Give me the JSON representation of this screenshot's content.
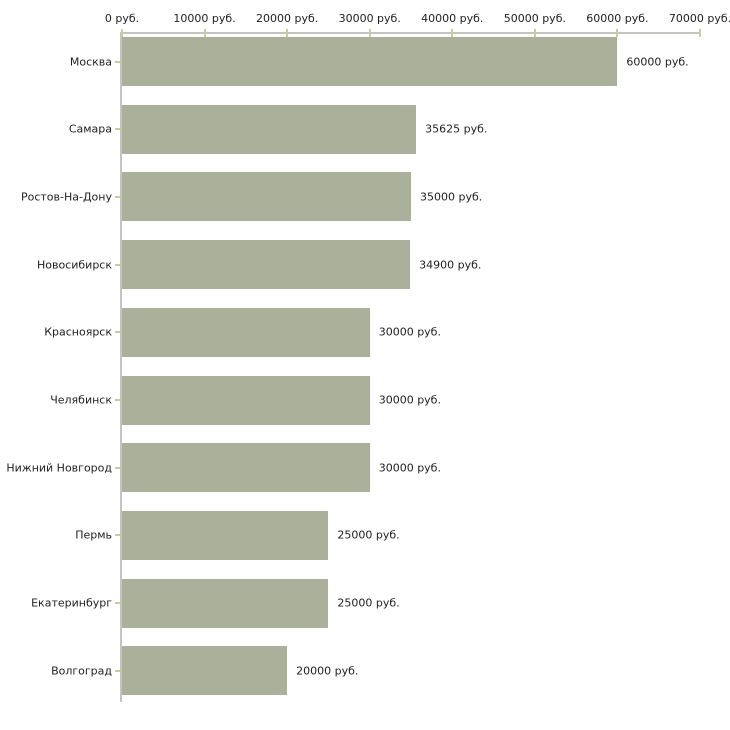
{
  "chart_data": {
    "type": "bar",
    "orientation": "horizontal",
    "title": "",
    "xlabel": "",
    "ylabel": "",
    "grid": false,
    "legend": false,
    "xlim": [
      0,
      70000
    ],
    "categories": [
      "Москва",
      "Самара",
      "Ростов-На-Дону",
      "Новосибирск",
      "Красноярск",
      "Челябинск",
      "Нижний Новгород",
      "Пермь",
      "Екатеринбург",
      "Волгоград"
    ],
    "values": [
      60000,
      35625,
      35000,
      34900,
      30000,
      30000,
      30000,
      25000,
      25000,
      20000
    ],
    "value_labels": [
      "60000 руб.",
      "35625 руб.",
      "35000 руб.",
      "34900 руб.",
      "30000 руб.",
      "30000 руб.",
      "30000 руб.",
      "25000 руб.",
      "25000 руб.",
      "20000 руб."
    ],
    "x_ticks": [
      {
        "value": 0,
        "label": "0 руб."
      },
      {
        "value": 10000,
        "label": "10000 руб."
      },
      {
        "value": 20000,
        "label": "20000 руб."
      },
      {
        "value": 30000,
        "label": "30000 руб."
      },
      {
        "value": 40000,
        "label": "40000 руб."
      },
      {
        "value": 50000,
        "label": "50000 руб."
      },
      {
        "value": 60000,
        "label": "60000 руб."
      },
      {
        "value": 70000,
        "label": "70000 руб."
      }
    ],
    "colors": {
      "bar": "#aab09a",
      "axis_line": "#c4c4c0",
      "tick_mark": "#cccc99",
      "text": "#222222",
      "background": "#ffffff"
    }
  }
}
